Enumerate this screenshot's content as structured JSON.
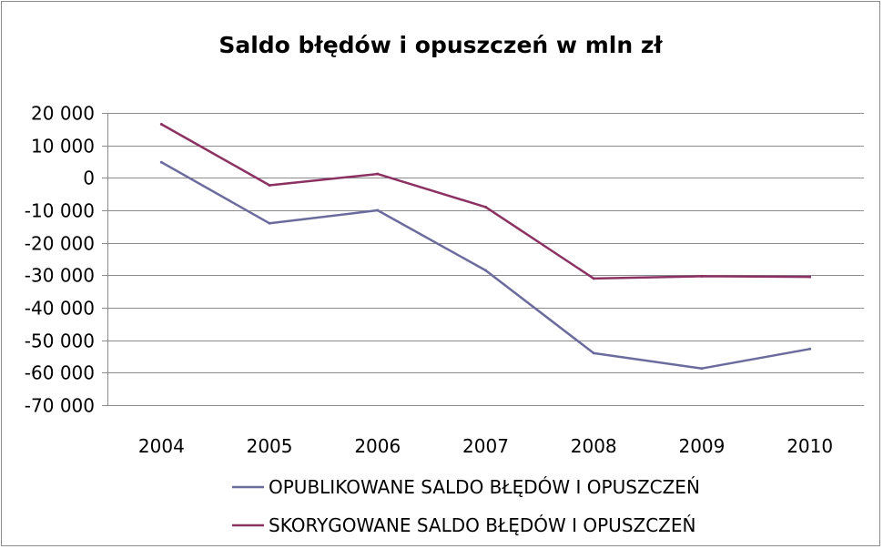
{
  "chart_data": {
    "type": "line",
    "title": "Saldo błędów i opuszczeń w mln zł",
    "xlabel": "",
    "ylabel": "",
    "categories": [
      "2004",
      "2005",
      "2006",
      "2007",
      "2008",
      "2009",
      "2010"
    ],
    "ylim": [
      -70000,
      20000
    ],
    "yticks": [
      20000,
      10000,
      0,
      -10000,
      -20000,
      -30000,
      -40000,
      -50000,
      -60000,
      -70000
    ],
    "ytick_labels": [
      "20 000",
      "10 000",
      "0",
      "-10 000",
      "-20 000",
      "-30 000",
      "-40 000",
      "-50 000",
      "-60 000",
      "-70 000"
    ],
    "grid": true,
    "legend_position": "bottom",
    "series": [
      {
        "name": "OPUBLIKOWANE SALDO BŁĘDÓW I OPUSZCZEŃ",
        "color": "#6b6b9e",
        "values": [
          4800,
          -14000,
          -10000,
          -28500,
          -54000,
          -58700,
          -52700
        ]
      },
      {
        "name": "SKORYGOWANE SALDO BŁĘDÓW I OPUSZCZEŃ",
        "color": "#8b3262",
        "values": [
          16500,
          -2300,
          1200,
          -9000,
          -31000,
          -30300,
          -30500
        ]
      }
    ]
  }
}
